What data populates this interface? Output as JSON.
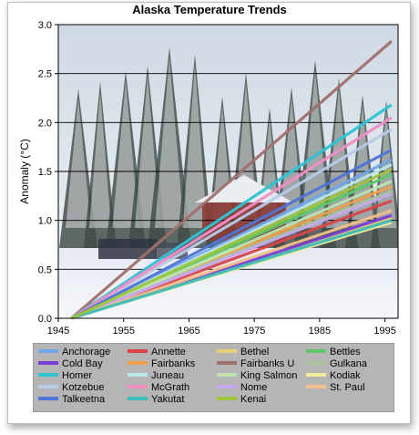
{
  "chart_data": {
    "type": "line",
    "title": "Alaska Temperature Trends",
    "xlabel": "",
    "ylabel": "Anomaly (°C)",
    "xlim": [
      1945,
      1997
    ],
    "ylim": [
      0.0,
      3.0
    ],
    "x_ticks": [
      "1945",
      "1955",
      "1965",
      "1975",
      "1985",
      "1995"
    ],
    "y_ticks": [
      "0.0",
      "0.5",
      "1.0",
      "1.5",
      "2.0",
      "2.5",
      "3.0"
    ],
    "grid": "horizontal",
    "legend_position": "bottom",
    "x_start": 1947,
    "x_end": 1996,
    "series": [
      {
        "name": "Anchorage",
        "color": "#6ea6e8",
        "values": [
          0,
          1.62
        ]
      },
      {
        "name": "Annette",
        "color": "#d9464a",
        "values": [
          0,
          1.2
        ]
      },
      {
        "name": "Bethel",
        "color": "#e8cf74",
        "values": [
          0,
          1.02
        ]
      },
      {
        "name": "Bettles",
        "color": "#5cc96a",
        "values": [
          0,
          1.47
        ]
      },
      {
        "name": "Cold Bay",
        "color": "#7b3fd6",
        "values": [
          0,
          1.05
        ]
      },
      {
        "name": "Fairbanks",
        "color": "#f0a04b",
        "values": [
          0,
          1.35
        ]
      },
      {
        "name": "Fairbanks U",
        "color": "#a0706c",
        "values": [
          0,
          2.83
        ]
      },
      {
        "name": "Gulkana",
        "color": "#a8c49a",
        "values": [
          0,
          1.3
        ]
      },
      {
        "name": "Homer",
        "color": "#2ec4d6",
        "values": [
          0,
          2.18
        ]
      },
      {
        "name": "Juneau",
        "color": "#b9e6ea",
        "values": [
          0,
          1.57
        ]
      },
      {
        "name": "King Salmon",
        "color": "#bde3b1",
        "values": [
          0,
          1.4
        ]
      },
      {
        "name": "Kodiak",
        "color": "#f3eb9a",
        "values": [
          0,
          0.98
        ]
      },
      {
        "name": "Kotzebue",
        "color": "#b8cbe8",
        "values": [
          0,
          1.93
        ]
      },
      {
        "name": "McGrath",
        "color": "#f08fc6",
        "values": [
          0,
          2.05
        ]
      },
      {
        "name": "Nome",
        "color": "#c8a8f0",
        "values": [
          0,
          1.27
        ]
      },
      {
        "name": "St. Paul",
        "color": "#f2c08a",
        "values": [
          0,
          1.1
        ]
      },
      {
        "name": "Talkeetna",
        "color": "#4f75d8",
        "values": [
          0,
          1.72
        ]
      },
      {
        "name": "Yakutat",
        "color": "#3dbdb8",
        "values": [
          0,
          1.0
        ]
      },
      {
        "name": "Kenai",
        "color": "#9cc63c",
        "values": [
          0,
          1.52
        ]
      }
    ]
  }
}
